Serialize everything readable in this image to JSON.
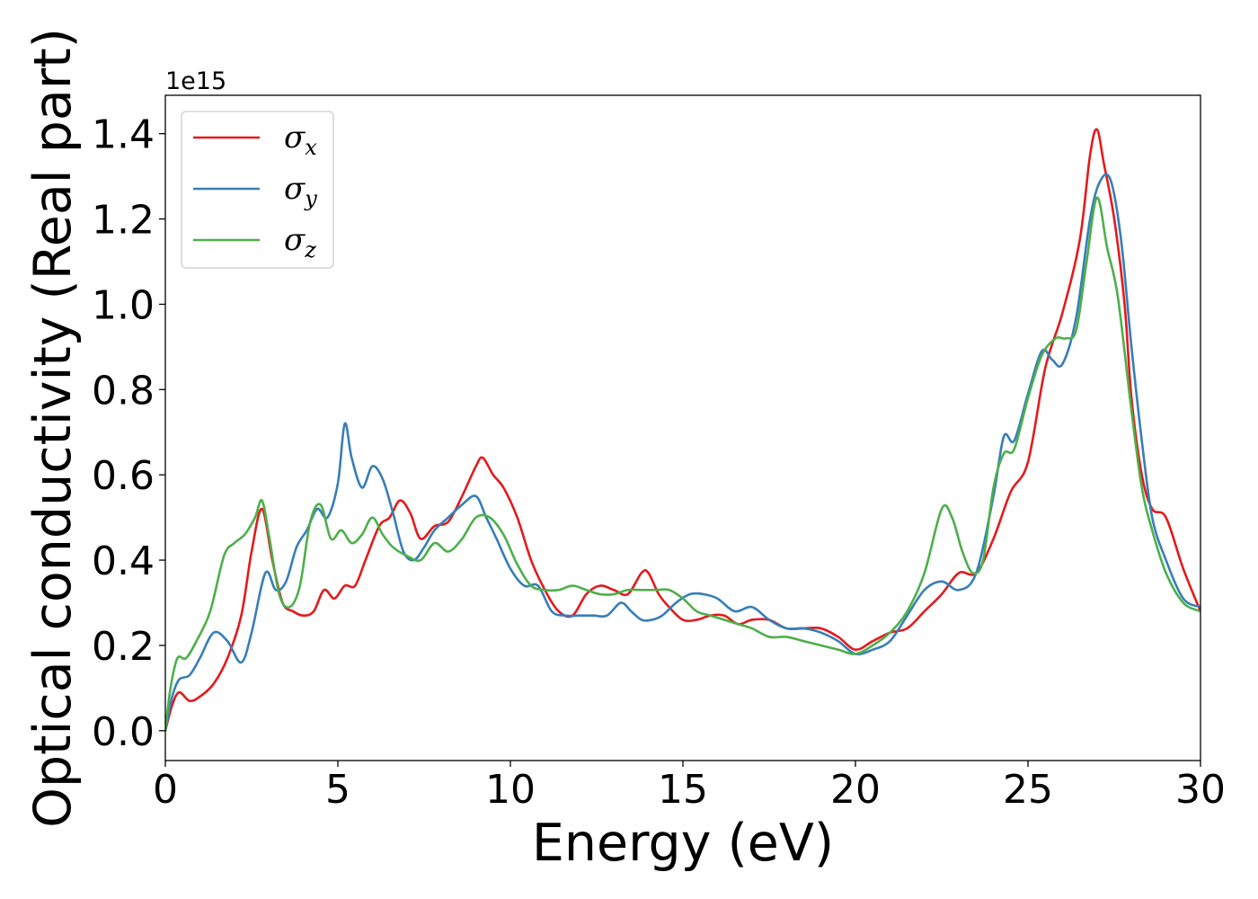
{
  "chart_data": {
    "type": "line",
    "title": "",
    "xlabel": "Energy (eV)",
    "ylabel": "Optical conductivity (Real part)",
    "y_offset_label": "1e15",
    "xlim": [
      0,
      30
    ],
    "ylim": [
      -0.07,
      1.49
    ],
    "xticks": [
      0,
      5,
      10,
      15,
      20,
      25,
      30
    ],
    "xtick_labels": [
      "0",
      "5",
      "10",
      "15",
      "20",
      "25",
      "30"
    ],
    "yticks": [
      0.0,
      0.2,
      0.4,
      0.6,
      0.8,
      1.0,
      1.2,
      1.4
    ],
    "ytick_labels": [
      "0.0",
      "0.2",
      "0.4",
      "0.6",
      "0.8",
      "1.0",
      "1.2",
      "1.4"
    ],
    "grid": false,
    "legend_position": "top-left",
    "series": [
      {
        "name": "σx",
        "symbol": "σ",
        "subscript": "x",
        "color": "#e41a1c",
        "x": [
          0,
          0.2,
          0.4,
          0.7,
          1.0,
          1.4,
          1.8,
          2.2,
          2.5,
          2.8,
          3.1,
          3.4,
          3.7,
          4.0,
          4.3,
          4.6,
          4.9,
          5.2,
          5.5,
          5.8,
          6.2,
          6.5,
          6.8,
          7.1,
          7.4,
          7.8,
          8.2,
          8.6,
          9.0,
          9.2,
          9.5,
          9.8,
          10.2,
          10.6,
          11.0,
          11.4,
          11.8,
          12.2,
          12.6,
          13.0,
          13.4,
          13.8,
          14.0,
          14.3,
          14.6,
          15.0,
          15.4,
          15.8,
          16.2,
          16.6,
          17.0,
          17.5,
          18.0,
          18.5,
          19.0,
          19.5,
          20.0,
          20.5,
          21.0,
          21.5,
          22.0,
          22.5,
          23.0,
          23.5,
          24.0,
          24.5,
          25.0,
          25.5,
          26.0,
          26.5,
          26.8,
          27.0,
          27.2,
          27.5,
          27.8,
          28.0,
          28.3,
          28.6,
          29.0,
          29.5,
          30.0
        ],
        "y": [
          0.0,
          0.06,
          0.09,
          0.07,
          0.08,
          0.11,
          0.17,
          0.27,
          0.42,
          0.52,
          0.4,
          0.3,
          0.28,
          0.27,
          0.28,
          0.33,
          0.31,
          0.34,
          0.34,
          0.4,
          0.48,
          0.5,
          0.54,
          0.51,
          0.45,
          0.48,
          0.49,
          0.55,
          0.62,
          0.64,
          0.6,
          0.57,
          0.5,
          0.4,
          0.33,
          0.28,
          0.27,
          0.32,
          0.34,
          0.33,
          0.32,
          0.37,
          0.37,
          0.32,
          0.29,
          0.26,
          0.26,
          0.27,
          0.27,
          0.25,
          0.26,
          0.26,
          0.24,
          0.24,
          0.24,
          0.22,
          0.19,
          0.21,
          0.23,
          0.24,
          0.28,
          0.32,
          0.37,
          0.37,
          0.45,
          0.56,
          0.63,
          0.85,
          0.98,
          1.15,
          1.35,
          1.41,
          1.33,
          1.2,
          1.0,
          0.78,
          0.6,
          0.52,
          0.5,
          0.38,
          0.28
        ]
      },
      {
        "name": "σy",
        "symbol": "σ",
        "subscript": "y",
        "color": "#377eb8",
        "x": [
          0,
          0.2,
          0.4,
          0.7,
          1.0,
          1.4,
          1.8,
          2.2,
          2.5,
          2.9,
          3.2,
          3.5,
          3.8,
          4.1,
          4.4,
          4.7,
          5.0,
          5.2,
          5.4,
          5.7,
          6.0,
          6.3,
          6.6,
          6.9,
          7.2,
          7.5,
          7.8,
          8.2,
          8.6,
          9.0,
          9.3,
          9.6,
          10.0,
          10.4,
          10.8,
          11.2,
          11.6,
          12.0,
          12.4,
          12.8,
          13.2,
          13.5,
          13.8,
          14.1,
          14.4,
          14.8,
          15.2,
          15.6,
          16.0,
          16.5,
          17.0,
          17.5,
          18.0,
          18.5,
          19.0,
          19.5,
          20.0,
          20.5,
          21.0,
          21.5,
          22.0,
          22.5,
          23.0,
          23.5,
          24.0,
          24.3,
          24.6,
          25.0,
          25.4,
          25.7,
          26.0,
          26.4,
          26.8,
          27.1,
          27.4,
          27.7,
          28.0,
          28.3,
          28.6,
          29.0,
          29.5,
          30.0
        ],
        "y": [
          0.0,
          0.08,
          0.12,
          0.13,
          0.17,
          0.23,
          0.21,
          0.16,
          0.23,
          0.37,
          0.33,
          0.35,
          0.43,
          0.47,
          0.52,
          0.5,
          0.58,
          0.72,
          0.64,
          0.57,
          0.62,
          0.59,
          0.51,
          0.42,
          0.4,
          0.43,
          0.47,
          0.5,
          0.53,
          0.55,
          0.5,
          0.45,
          0.38,
          0.34,
          0.34,
          0.28,
          0.27,
          0.27,
          0.27,
          0.27,
          0.3,
          0.28,
          0.26,
          0.26,
          0.27,
          0.3,
          0.32,
          0.32,
          0.31,
          0.28,
          0.29,
          0.26,
          0.24,
          0.24,
          0.23,
          0.21,
          0.18,
          0.19,
          0.21,
          0.27,
          0.33,
          0.35,
          0.33,
          0.37,
          0.55,
          0.69,
          0.68,
          0.79,
          0.89,
          0.87,
          0.86,
          0.97,
          1.2,
          1.29,
          1.29,
          1.15,
          0.9,
          0.68,
          0.5,
          0.4,
          0.31,
          0.29
        ]
      },
      {
        "name": "σz",
        "symbol": "σ",
        "subscript": "z",
        "color": "#4daf4a",
        "x": [
          0,
          0.15,
          0.35,
          0.6,
          0.9,
          1.3,
          1.7,
          2.0,
          2.3,
          2.6,
          2.8,
          3.0,
          3.3,
          3.6,
          3.9,
          4.2,
          4.5,
          4.8,
          5.1,
          5.4,
          5.7,
          6.0,
          6.3,
          6.6,
          7.0,
          7.4,
          7.8,
          8.2,
          8.6,
          9.0,
          9.4,
          9.8,
          10.2,
          10.6,
          11.0,
          11.4,
          11.8,
          12.2,
          12.6,
          13.0,
          13.4,
          13.8,
          14.2,
          14.6,
          15.0,
          15.4,
          15.8,
          16.2,
          16.6,
          17.0,
          17.5,
          18.0,
          18.5,
          19.0,
          19.5,
          20.0,
          20.5,
          21.0,
          21.5,
          22.0,
          22.5,
          22.8,
          23.1,
          23.4,
          23.7,
          24.0,
          24.3,
          24.6,
          25.0,
          25.4,
          25.8,
          26.1,
          26.4,
          26.7,
          27.0,
          27.3,
          27.6,
          28.0,
          28.3,
          28.6,
          29.0,
          29.5,
          30.0
        ],
        "y": [
          0.0,
          0.1,
          0.17,
          0.17,
          0.21,
          0.28,
          0.41,
          0.44,
          0.46,
          0.5,
          0.54,
          0.46,
          0.32,
          0.29,
          0.34,
          0.49,
          0.53,
          0.45,
          0.47,
          0.44,
          0.46,
          0.5,
          0.46,
          0.43,
          0.41,
          0.4,
          0.44,
          0.42,
          0.45,
          0.5,
          0.5,
          0.46,
          0.39,
          0.34,
          0.33,
          0.33,
          0.34,
          0.33,
          0.32,
          0.32,
          0.33,
          0.33,
          0.33,
          0.33,
          0.31,
          0.28,
          0.27,
          0.26,
          0.25,
          0.24,
          0.22,
          0.22,
          0.21,
          0.2,
          0.19,
          0.18,
          0.2,
          0.23,
          0.28,
          0.37,
          0.52,
          0.5,
          0.42,
          0.37,
          0.4,
          0.57,
          0.65,
          0.66,
          0.78,
          0.88,
          0.92,
          0.92,
          0.94,
          1.1,
          1.25,
          1.13,
          1.02,
          0.75,
          0.57,
          0.47,
          0.37,
          0.3,
          0.28
        ]
      }
    ]
  }
}
